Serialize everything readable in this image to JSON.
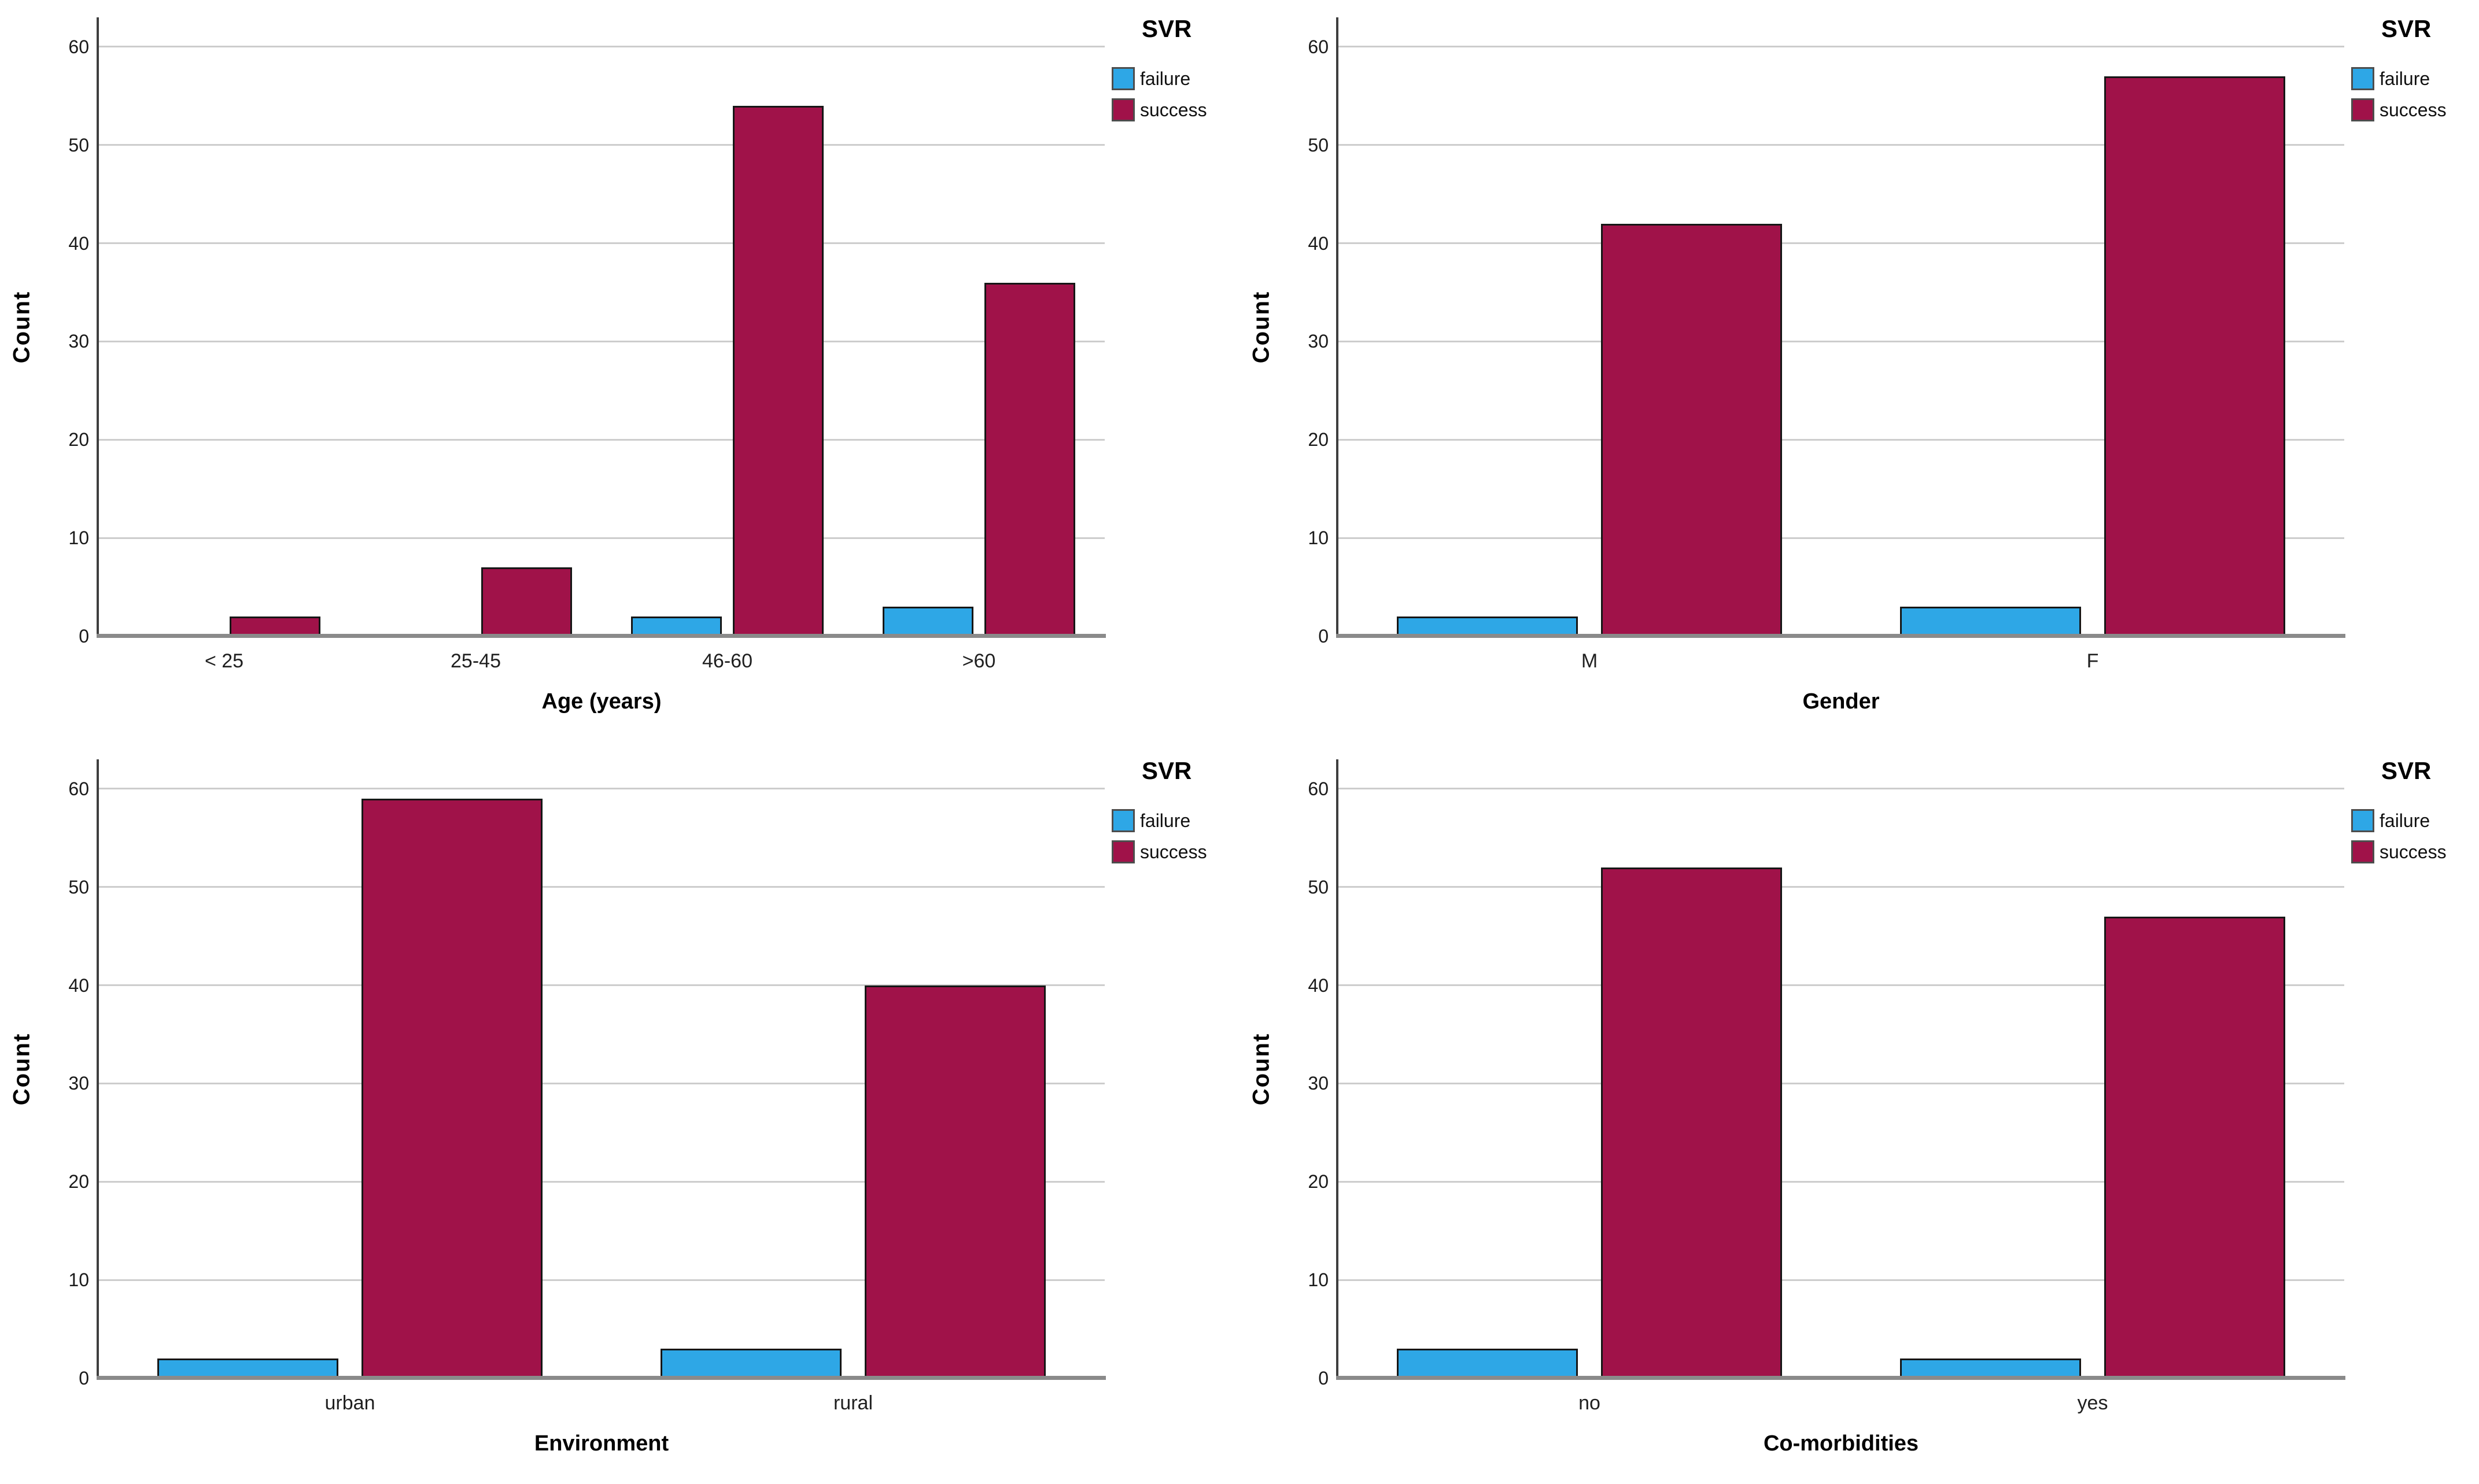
{
  "page": {
    "background_color": "#ffffff"
  },
  "legend": {
    "title": "SVR",
    "items": [
      {
        "label": "failure",
        "color": "#2ea7e6"
      },
      {
        "label": "success",
        "color": "#a01249"
      }
    ]
  },
  "styles": {
    "grid_color": "#cdcdcd",
    "baseline_color": "#8a8a8a",
    "y_axis_color": "#3f3f3f",
    "bar_border_color": "#161616"
  },
  "chart_data": [
    {
      "type": "bar",
      "title": "",
      "xlabel": "Age (years)",
      "ylabel": "Count",
      "categories": [
        "< 25",
        "25-45",
        "46-60",
        ">60"
      ],
      "series": [
        {
          "name": "failure",
          "color": "#2ea7e6",
          "values": [
            0,
            0,
            2,
            3
          ]
        },
        {
          "name": "success",
          "color": "#a01249",
          "values": [
            2,
            7,
            54,
            36
          ]
        }
      ],
      "ylim": [
        0,
        63
      ],
      "yticks": [
        0,
        10,
        20,
        30,
        40,
        50,
        60
      ],
      "grid": true,
      "legend_position": "top-right"
    },
    {
      "type": "bar",
      "title": "",
      "xlabel": "Gender",
      "ylabel": "Count",
      "categories": [
        "M",
        "F"
      ],
      "series": [
        {
          "name": "failure",
          "color": "#2ea7e6",
          "values": [
            2,
            3
          ]
        },
        {
          "name": "success",
          "color": "#a01249",
          "values": [
            42,
            57
          ]
        }
      ],
      "ylim": [
        0,
        63
      ],
      "yticks": [
        0,
        10,
        20,
        30,
        40,
        50,
        60
      ],
      "grid": true,
      "legend_position": "top-right"
    },
    {
      "type": "bar",
      "title": "",
      "xlabel": "Environment",
      "ylabel": "Count",
      "categories": [
        "urban",
        "rural"
      ],
      "series": [
        {
          "name": "failure",
          "color": "#2ea7e6",
          "values": [
            2,
            3
          ]
        },
        {
          "name": "success",
          "color": "#a01249",
          "values": [
            59,
            40
          ]
        }
      ],
      "ylim": [
        0,
        63
      ],
      "yticks": [
        0,
        10,
        20,
        30,
        40,
        50,
        60
      ],
      "grid": true,
      "legend_position": "top-right"
    },
    {
      "type": "bar",
      "title": "",
      "xlabel": "Co-morbidities",
      "ylabel": "Count",
      "categories": [
        "no",
        "yes"
      ],
      "series": [
        {
          "name": "failure",
          "color": "#2ea7e6",
          "values": [
            3,
            2
          ]
        },
        {
          "name": "success",
          "color": "#a01249",
          "values": [
            52,
            47
          ]
        }
      ],
      "ylim": [
        0,
        63
      ],
      "yticks": [
        0,
        10,
        20,
        30,
        40,
        50,
        60
      ],
      "grid": true,
      "legend_position": "top-right"
    }
  ]
}
